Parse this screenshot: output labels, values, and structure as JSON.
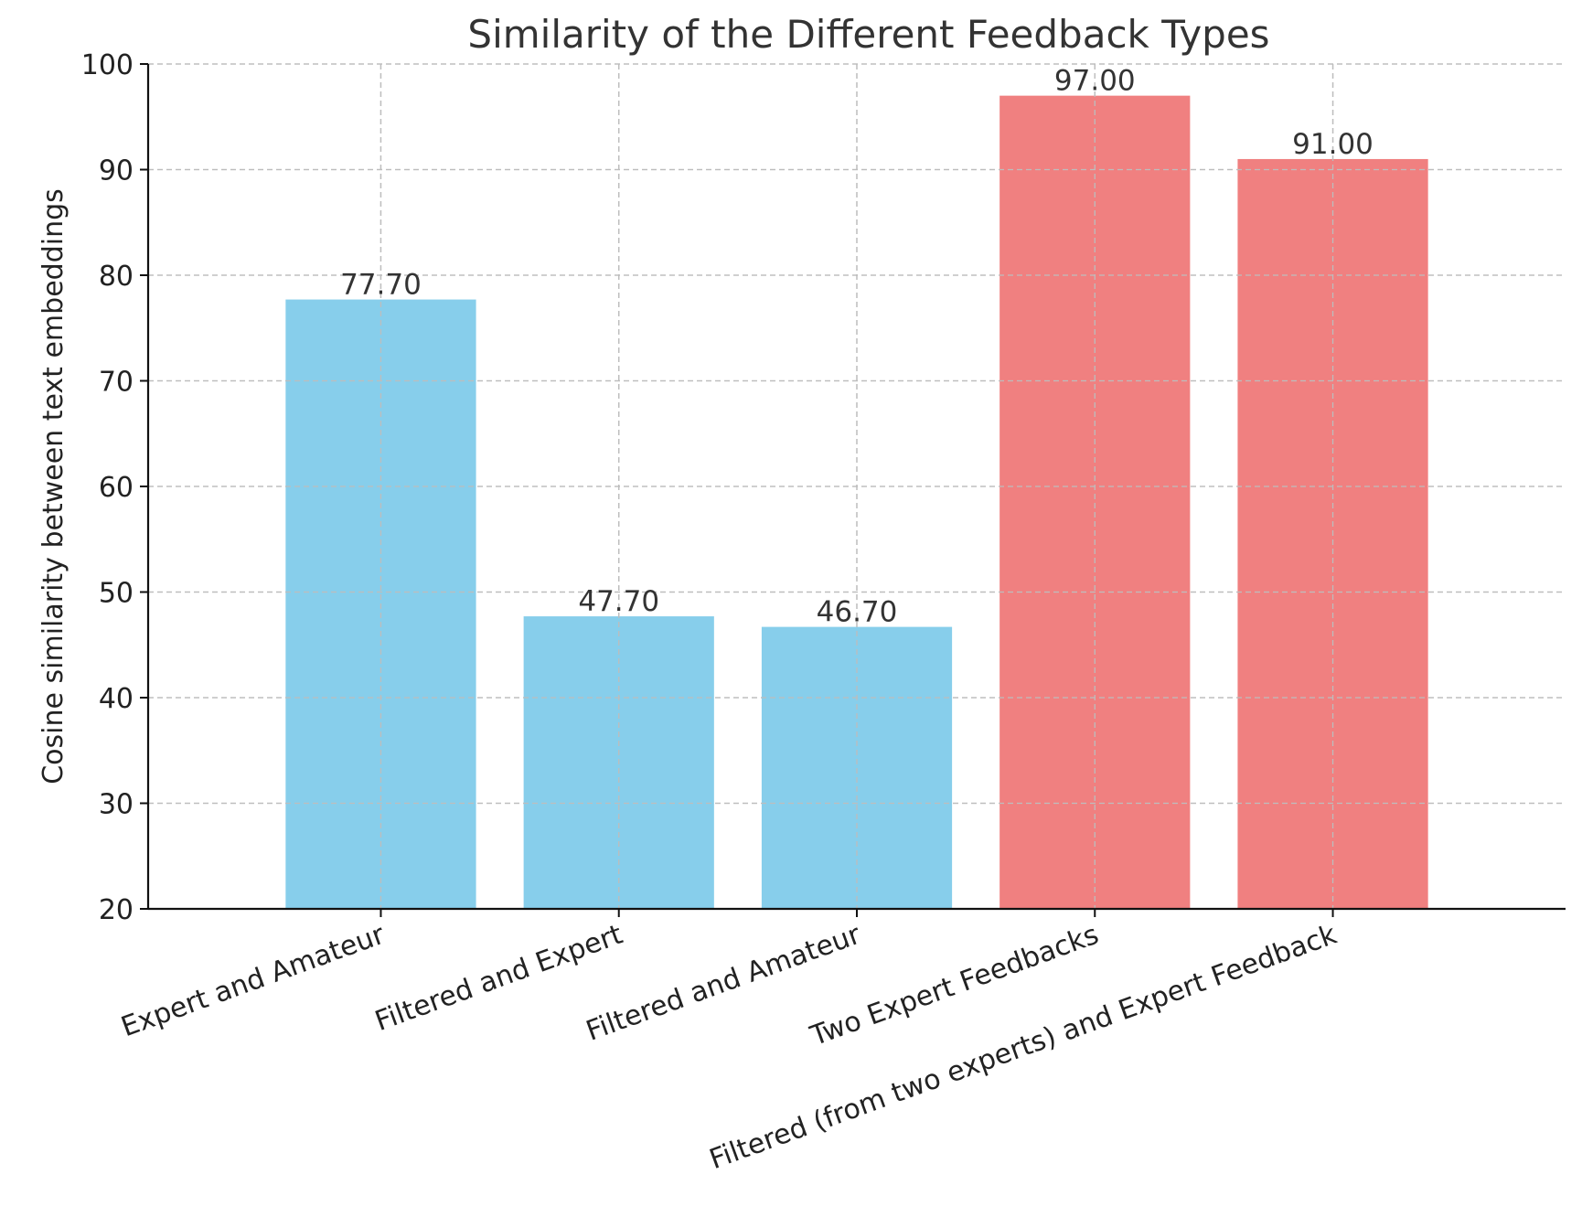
{
  "chart_data": {
    "type": "bar",
    "title": "Similarity of the Different Feedback Types",
    "xlabel": "",
    "ylabel": "Cosine similarity between text embeddings",
    "ylim": [
      20,
      100
    ],
    "yticks": [
      20,
      30,
      40,
      50,
      60,
      70,
      80,
      90,
      100
    ],
    "grid": true,
    "categories": [
      "Expert and Amateur",
      "Filtered and Expert",
      "Filtered and Amateur",
      "Two Expert Feedbacks",
      "Filtered (from two experts) and Expert Feedback"
    ],
    "values": [
      77.7,
      47.7,
      46.7,
      97.0,
      91.0
    ],
    "value_labels": [
      "77.70",
      "47.70",
      "46.70",
      "97.00",
      "91.00"
    ],
    "bar_colors": [
      "#87ceeb",
      "#87ceeb",
      "#87ceeb",
      "#f08080",
      "#f08080"
    ]
  }
}
